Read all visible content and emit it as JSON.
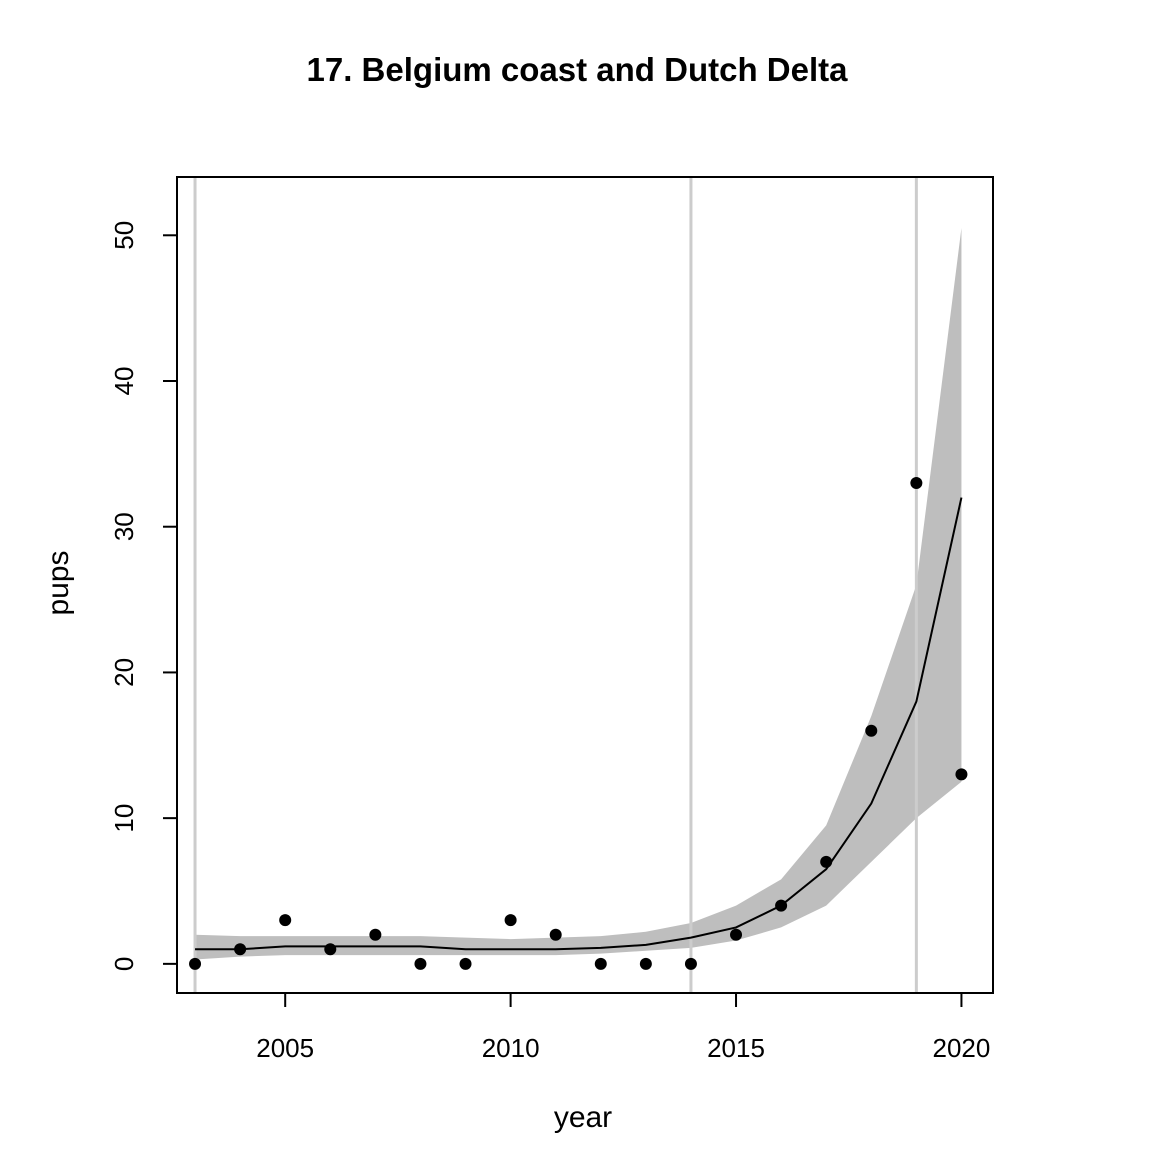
{
  "chart_data": {
    "type": "line",
    "title": "17. Belgium coast and Dutch Delta",
    "xlabel": "year",
    "ylabel": "pups",
    "xlim": [
      2002.6,
      2020.7
    ],
    "ylim": [
      -2,
      54
    ],
    "x_ticks": [
      2005,
      2010,
      2015,
      2020
    ],
    "y_ticks": [
      0,
      10,
      20,
      30,
      40,
      50
    ],
    "grid": false,
    "legend": "none",
    "vertical_lines": [
      2003,
      2014,
      2019
    ],
    "observed": {
      "x": [
        2003,
        2004,
        2005,
        2006,
        2007,
        2008,
        2009,
        2010,
        2011,
        2012,
        2013,
        2014,
        2015,
        2016,
        2017,
        2018,
        2019,
        2020
      ],
      "y": [
        0,
        1,
        3,
        1,
        2,
        0,
        0,
        3,
        2,
        0,
        0,
        0,
        2,
        4,
        7,
        16,
        33,
        13
      ]
    },
    "fitted": {
      "x": [
        2003,
        2004,
        2005,
        2006,
        2007,
        2008,
        2009,
        2010,
        2011,
        2012,
        2013,
        2014,
        2015,
        2016,
        2017,
        2018,
        2019,
        2020
      ],
      "y": [
        1.0,
        1.0,
        1.2,
        1.2,
        1.2,
        1.2,
        1.0,
        1.0,
        1.0,
        1.1,
        1.3,
        1.8,
        2.5,
        4.0,
        6.5,
        11.0,
        18.0,
        32.0
      ]
    },
    "band": {
      "x": [
        2003,
        2004,
        2005,
        2006,
        2007,
        2008,
        2009,
        2010,
        2011,
        2012,
        2013,
        2014,
        2015,
        2016,
        2017,
        2018,
        2019,
        2020
      ],
      "lower": [
        0.3,
        0.5,
        0.6,
        0.6,
        0.6,
        0.6,
        0.6,
        0.6,
        0.6,
        0.7,
        0.9,
        1.1,
        1.6,
        2.5,
        4.0,
        7.0,
        10.0,
        12.5
      ],
      "upper": [
        2.0,
        1.9,
        1.9,
        1.9,
        1.9,
        1.9,
        1.8,
        1.7,
        1.8,
        1.9,
        2.2,
        2.8,
        4.0,
        5.8,
        9.5,
        17.0,
        26.0,
        50.5
      ]
    },
    "colors": {
      "band": "#bebebe",
      "vertical_line": "#cccccc",
      "line": "#000000",
      "points": "#000000",
      "frame": "#000000"
    }
  }
}
